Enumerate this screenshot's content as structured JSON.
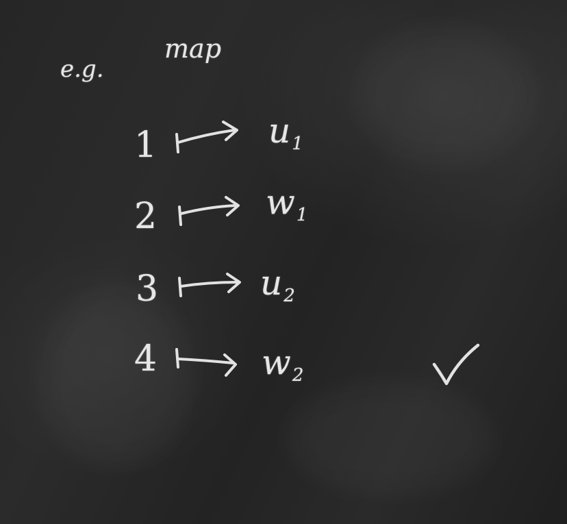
{
  "board": {
    "eg_label": "e.g.",
    "map_label": "map",
    "rows": [
      {
        "from": "1",
        "to": "u",
        "sub": "1"
      },
      {
        "from": "2",
        "to": "w",
        "sub": "1"
      },
      {
        "from": "3",
        "to": "u",
        "sub": "2"
      },
      {
        "from": "4",
        "to": "w",
        "sub": "2"
      }
    ],
    "check_icon": "checkmark-icon",
    "chalk_color": "#e6e6e6",
    "board_color": "#262626"
  }
}
